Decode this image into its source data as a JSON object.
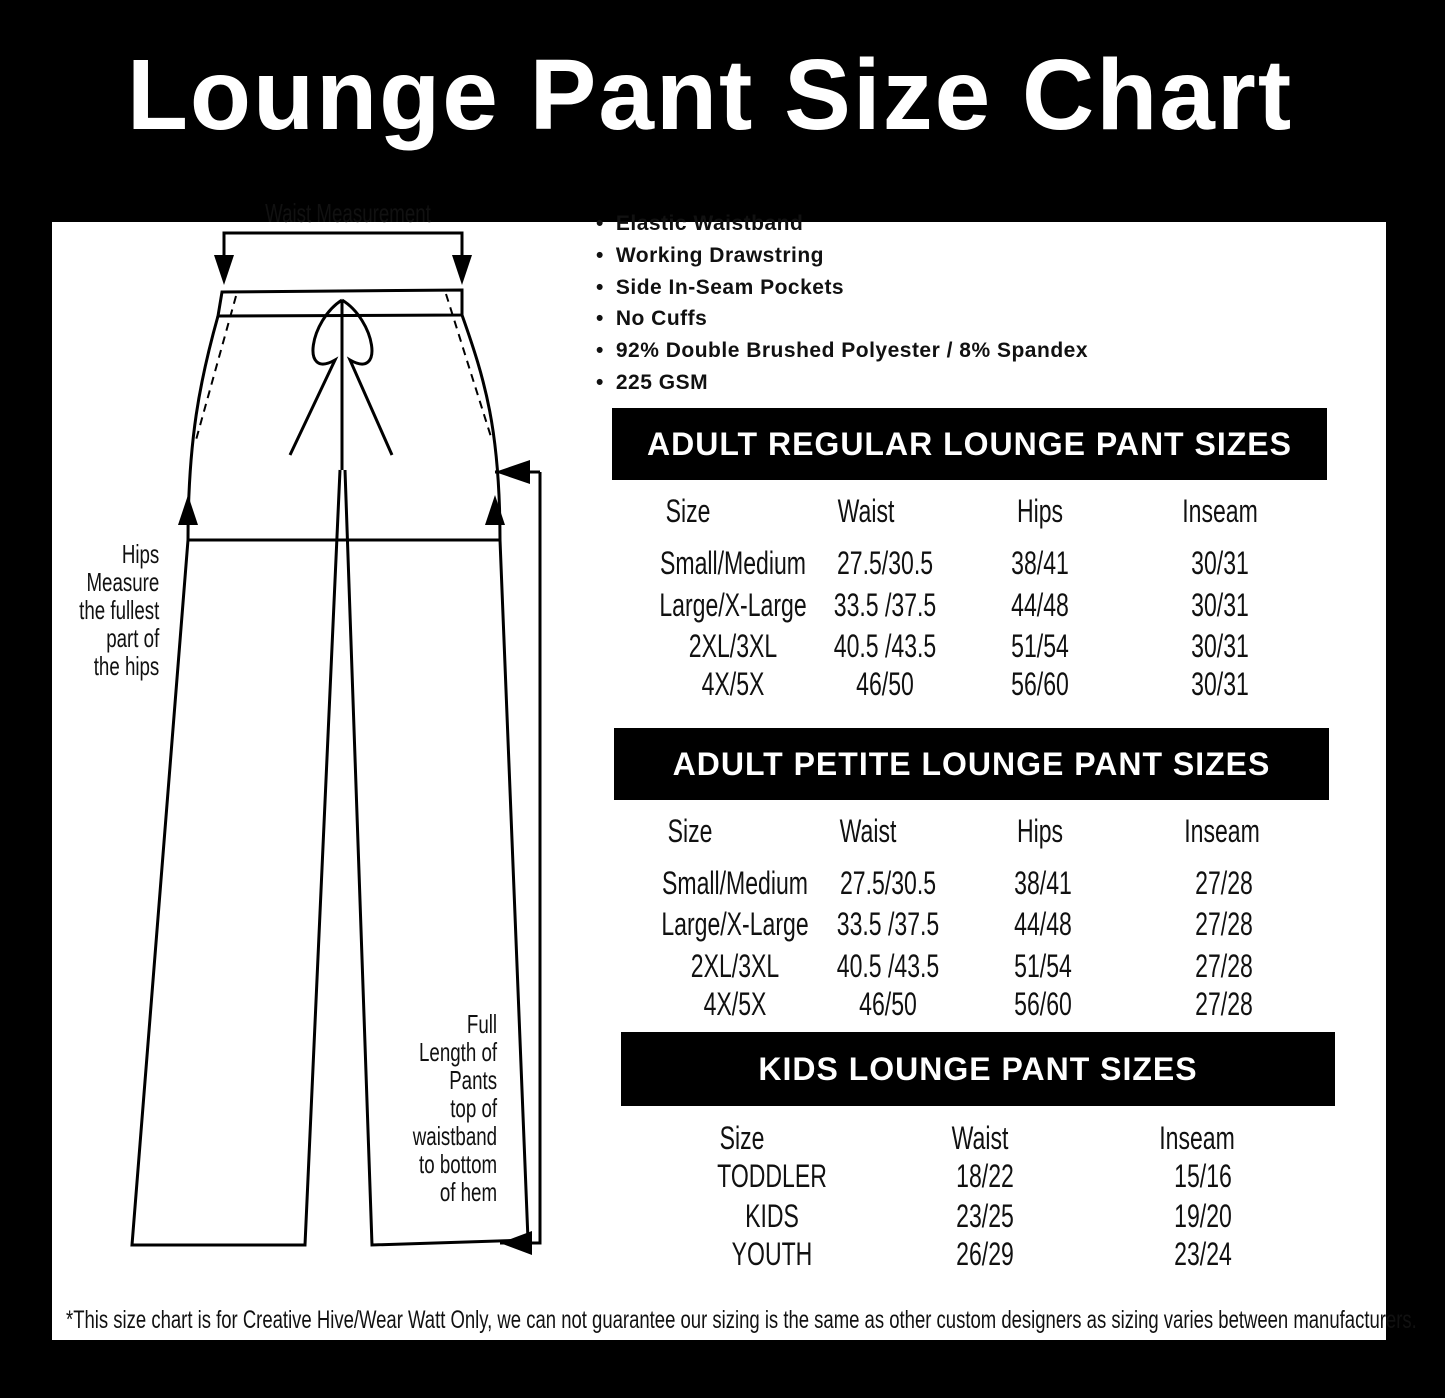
{
  "title": "Lounge Pant Size Chart",
  "diagram": {
    "waist_label": "Waist Measurement",
    "hips_label": [
      "Hips",
      "Measure",
      "the fullest",
      "part of",
      "the hips"
    ],
    "length_label": [
      "Full",
      "Length of",
      "Pants",
      "top of",
      "waistband",
      "to bottom",
      "of hem"
    ]
  },
  "features": [
    "Elastic Waistband",
    "Working Drawstring",
    "Side In-Seam Pockets",
    "No Cuffs",
    "92% Double Brushed Polyester / 8% Spandex",
    "225 GSM"
  ],
  "tables": [
    {
      "title": "ADULT REGULAR LOUNGE PANT SIZES",
      "headers": [
        "Size",
        "Waist",
        "Hips",
        "Inseam"
      ],
      "rows": [
        [
          "Small/Medium",
          "27.5/30.5",
          "38/41",
          "30/31"
        ],
        [
          "Large/X-Large",
          "33.5 /37.5",
          "44/48",
          "30/31"
        ],
        [
          "2XL/3XL",
          "40.5 /43.5",
          "51/54",
          "30/31"
        ],
        [
          "4X/5X",
          "46/50",
          "56/60",
          "30/31"
        ]
      ]
    },
    {
      "title": "ADULT PETITE LOUNGE PANT SIZES",
      "headers": [
        "Size",
        "Waist",
        "Hips",
        "Inseam"
      ],
      "rows": [
        [
          "Small/Medium",
          "27.5/30.5",
          "38/41",
          "27/28"
        ],
        [
          "Large/X-Large",
          "33.5 /37.5",
          "44/48",
          "27/28"
        ],
        [
          "2XL/3XL",
          "40.5 /43.5",
          "51/54",
          "27/28"
        ],
        [
          "4X/5X",
          "46/50",
          "56/60",
          "27/28"
        ]
      ]
    },
    {
      "title": "KIDS LOUNGE PANT SIZES",
      "headers": [
        "Size",
        "Waist",
        "Inseam"
      ],
      "rows": [
        [
          "TODDLER",
          "18/22",
          "15/16"
        ],
        [
          "KIDS",
          "23/25",
          "19/20"
        ],
        [
          "YOUTH",
          "26/29",
          "23/24"
        ]
      ]
    }
  ],
  "footnote": "*This size chart is for Creative Hive/Wear Watt Only, we can not guarantee our sizing is the same as other custom designers as sizing varies  between manufacturers."
}
